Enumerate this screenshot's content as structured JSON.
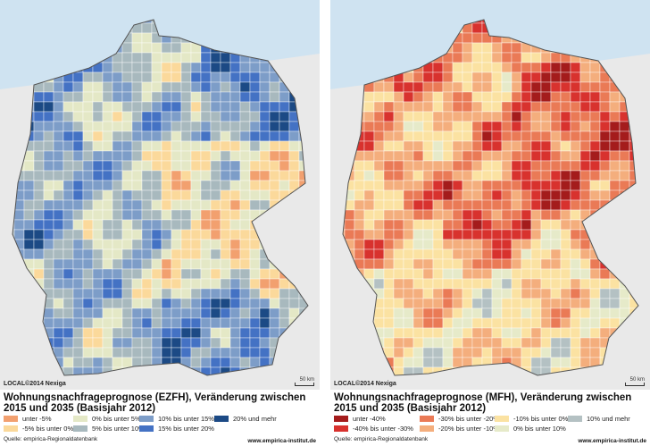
{
  "maps": [
    {
      "id": "ezfh",
      "title": "Wohnungsnachfrageprognose (EZFH), Veränderung zwischen 2015 und 2035 (Basisjahr 2012)",
      "copyright": "LOCAL©2014 Nexiga",
      "scale_label": "50 km",
      "source": "Quelle: empirica-Regionaldatenbank",
      "website": "www.empirica-institut.de",
      "legend": [
        {
          "label": "unter -5%",
          "color": "#f2a06f"
        },
        {
          "label": "-5% bis unter 0%",
          "color": "#fbd99b"
        },
        {
          "label": "0% bis unter 5%",
          "color": "#e4e8c6"
        },
        {
          "label": "5% bis unter 10%",
          "color": "#a8b9be"
        },
        {
          "label": "10% bis unter 15%",
          "color": "#7d9dc8"
        },
        {
          "label": "15% bis unter 20%",
          "color": "#4472c4"
        },
        {
          "label": "20% und mehr",
          "color": "#1c4a85"
        }
      ]
    },
    {
      "id": "mfh",
      "title": "Wohnungsnachfrageprognose (MFH), Veränderung zwischen 2015 und 2035 (Basisjahr 2012)",
      "copyright": "LOCAL©2014 Nexiga",
      "scale_label": "50 km",
      "source": "Quelle: empirica-Regionaldatenbank",
      "website": "www.empirica-institut.de",
      "legend": [
        {
          "label": "unter -40%",
          "color": "#a41c1c"
        },
        {
          "label": "-40% bis unter -30%",
          "color": "#d8322e"
        },
        {
          "label": "-30% bis unter -20%",
          "color": "#ea7a56"
        },
        {
          "label": "-20% bis unter -10%",
          "color": "#f4ae7d"
        },
        {
          "label": "-10% bis unter 0%",
          "color": "#fbe2a2"
        },
        {
          "label": "0% bis unter 10%",
          "color": "#e6eac9"
        },
        {
          "label": "10% und mehr",
          "color": "#b4c1c3"
        }
      ]
    }
  ]
}
